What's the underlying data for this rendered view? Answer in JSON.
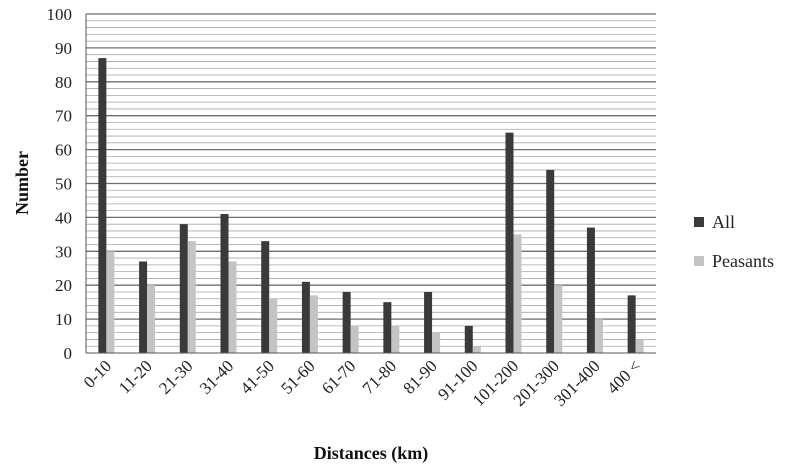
{
  "chart_data": {
    "type": "bar",
    "categories": [
      "0-10",
      "11-20",
      "21-30",
      "31-40",
      "41-50",
      "51-60",
      "61-70",
      "71-80",
      "81-90",
      "91-100",
      "101-200",
      "201-300",
      "301-400",
      "400 <"
    ],
    "series": [
      {
        "name": "All",
        "color": "#3a3a3a",
        "values": [
          87,
          27,
          38,
          41,
          33,
          21,
          18,
          15,
          18,
          8,
          65,
          54,
          37,
          17
        ]
      },
      {
        "name": "Peasants",
        "color": "#c4c4c4",
        "values": [
          30,
          20,
          33,
          27,
          16,
          17,
          8,
          8,
          6,
          2,
          35,
          20,
          10,
          4
        ]
      }
    ],
    "xlabel": "Distances (km)",
    "ylabel": "Number",
    "ylim": [
      0,
      100
    ],
    "yticks": [
      "0",
      "10",
      "20",
      "30",
      "40",
      "50",
      "60",
      "70",
      "80",
      "90",
      "100"
    ],
    "grid": true,
    "legend_position": "right"
  }
}
